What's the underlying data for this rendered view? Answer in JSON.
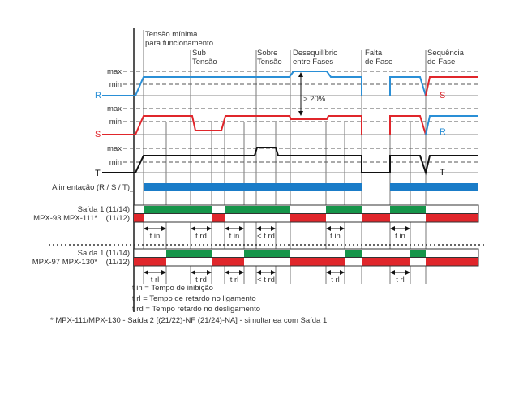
{
  "events": {
    "min_voltage": [
      "Tensão mínima",
      "para funcionamento"
    ],
    "undervoltage": [
      "Sub",
      "Tensão"
    ],
    "overvoltage": [
      "Sobre",
      "Tensão"
    ],
    "imbalance": [
      "Desequilíbrio",
      "entre Fases"
    ],
    "phase_loss": [
      "Falta",
      "de Fase"
    ],
    "phase_sequence": [
      "Sequência",
      "de Fase"
    ]
  },
  "levels": {
    "max": "max",
    "min": "min"
  },
  "phases": {
    "R": "R",
    "S": "S",
    "T": "T"
  },
  "colors": {
    "R": "#2a8fd6",
    "S": "#e0262b",
    "T": "#111111",
    "on": "#16954a",
    "off": "#e0262b",
    "supply": "#1a7cc8"
  },
  "imbalance_label": "> 20%",
  "supply_label": "Alimentação (R / S / T)",
  "supply_states": [
    "off",
    "on",
    "off",
    "on"
  ],
  "output_groups": [
    {
      "title": "Saída 1",
      "models": "MPX-93 MPX-111*",
      "contact_no": "(11/14)",
      "contact_nc": "(11/12)",
      "states": [
        "off",
        "on",
        "off",
        "on",
        "off",
        "on",
        "off",
        "on",
        "off"
      ],
      "timings": [
        "t in",
        "t rd",
        "t in",
        "< t rd",
        "t in",
        "t in"
      ]
    },
    {
      "title": "Saída 1",
      "models": "MPX-97 MPX-130*",
      "contact_no": "(11/14)",
      "contact_nc": "(11/12)",
      "states": [
        "off",
        "on",
        "off",
        "on",
        "off",
        "on",
        "off",
        "on",
        "off"
      ],
      "timings": [
        "t rl",
        "t rd",
        "t rl",
        "< t rd",
        "t rl",
        "t rl"
      ]
    }
  ],
  "legend": [
    "t in = Tempo de inibição",
    "t rl = Tempo de retardo no ligamento",
    "t rd = Tempo retardo no desligamento"
  ],
  "footnote": "* MPX-111/MPX-130 - Saída 2 [(21/22)-NF (21/24)-NA] - simultanea com Saída 1"
}
